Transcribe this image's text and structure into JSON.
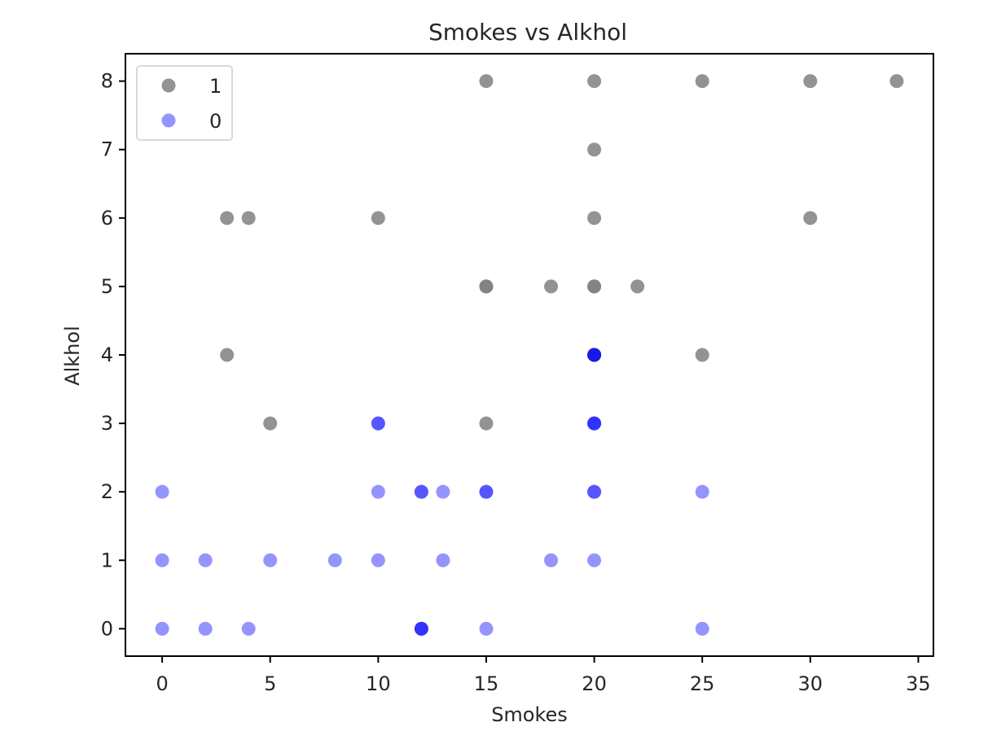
{
  "chart_data": {
    "type": "scatter",
    "title": "Smokes vs Alkhol",
    "xlabel": "Smokes",
    "ylabel": "Alkhol",
    "xlim": [
      -1.7,
      35.7
    ],
    "ylim": [
      -0.4,
      8.4
    ],
    "xticks": [
      0,
      5,
      10,
      15,
      20,
      25,
      30,
      35
    ],
    "yticks": [
      0,
      1,
      2,
      3,
      4,
      5,
      6,
      7,
      8
    ],
    "grid": false,
    "legend_position": "top-left",
    "series": [
      {
        "name": "1",
        "color": "#808080",
        "opacity": 0.85,
        "points": [
          {
            "x": 15,
            "y": 8
          },
          {
            "x": 20,
            "y": 8
          },
          {
            "x": 25,
            "y": 8
          },
          {
            "x": 30,
            "y": 8
          },
          {
            "x": 34,
            "y": 8
          },
          {
            "x": 20,
            "y": 7
          },
          {
            "x": 3,
            "y": 6
          },
          {
            "x": 4,
            "y": 6
          },
          {
            "x": 10,
            "y": 6
          },
          {
            "x": 20,
            "y": 6
          },
          {
            "x": 30,
            "y": 6
          },
          {
            "x": 15,
            "y": 5
          },
          {
            "x": 15,
            "y": 5
          },
          {
            "x": 18,
            "y": 5
          },
          {
            "x": 20,
            "y": 5
          },
          {
            "x": 20,
            "y": 5
          },
          {
            "x": 22,
            "y": 5
          },
          {
            "x": 3,
            "y": 4
          },
          {
            "x": 20,
            "y": 4
          },
          {
            "x": 20,
            "y": 4
          },
          {
            "x": 25,
            "y": 4
          },
          {
            "x": 5,
            "y": 3
          },
          {
            "x": 15,
            "y": 3
          }
        ]
      },
      {
        "name": "0",
        "color": "#0000ff",
        "opacity": 0.42,
        "points": [
          {
            "x": 10,
            "y": 3
          },
          {
            "x": 10,
            "y": 3
          },
          {
            "x": 20,
            "y": 4
          },
          {
            "x": 20,
            "y": 4
          },
          {
            "x": 20,
            "y": 4
          },
          {
            "x": 20,
            "y": 3
          },
          {
            "x": 20,
            "y": 3
          },
          {
            "x": 20,
            "y": 3
          },
          {
            "x": 0,
            "y": 2
          },
          {
            "x": 10,
            "y": 2
          },
          {
            "x": 12,
            "y": 2
          },
          {
            "x": 12,
            "y": 2
          },
          {
            "x": 13,
            "y": 2
          },
          {
            "x": 15,
            "y": 2
          },
          {
            "x": 15,
            "y": 2
          },
          {
            "x": 20,
            "y": 2
          },
          {
            "x": 20,
            "y": 2
          },
          {
            "x": 25,
            "y": 2
          },
          {
            "x": 0,
            "y": 1
          },
          {
            "x": 2,
            "y": 1
          },
          {
            "x": 5,
            "y": 1
          },
          {
            "x": 8,
            "y": 1
          },
          {
            "x": 10,
            "y": 1
          },
          {
            "x": 13,
            "y": 1
          },
          {
            "x": 18,
            "y": 1
          },
          {
            "x": 20,
            "y": 1
          },
          {
            "x": 0,
            "y": 0
          },
          {
            "x": 2,
            "y": 0
          },
          {
            "x": 4,
            "y": 0
          },
          {
            "x": 12,
            "y": 0
          },
          {
            "x": 12,
            "y": 0
          },
          {
            "x": 12,
            "y": 0
          },
          {
            "x": 15,
            "y": 0
          },
          {
            "x": 25,
            "y": 0
          }
        ]
      }
    ]
  }
}
